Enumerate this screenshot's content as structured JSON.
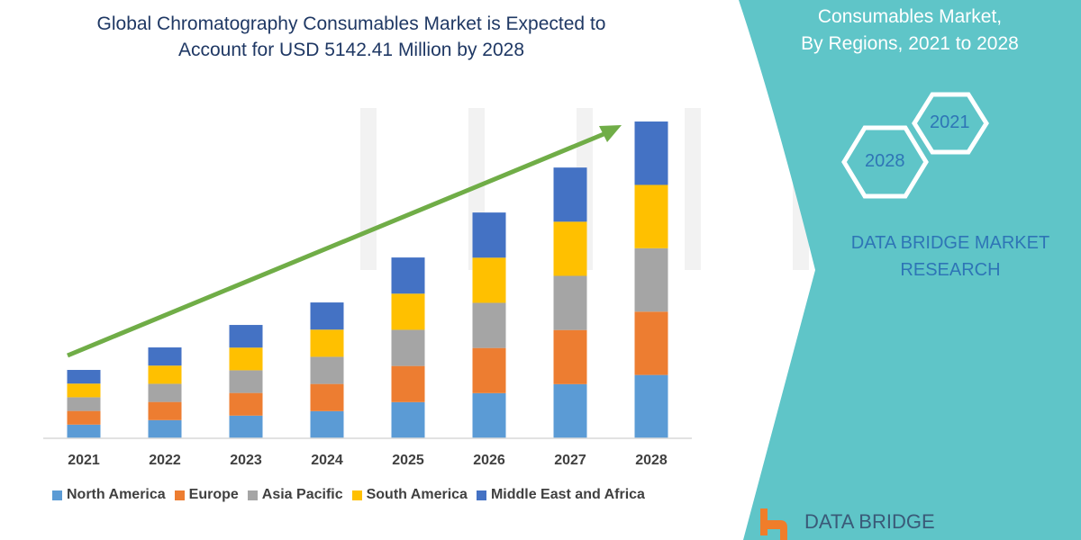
{
  "title_line1": "Global Chromatography Consumables Market is Expected to",
  "title_line2": "Account for USD 5142.41 Million by 2028",
  "panel": {
    "title_line1": "Consumables Market,",
    "title_line2": "By Regions, 2021 to 2028",
    "hex_2021": "2021",
    "hex_2028": "2028",
    "brand_line1": "DATA BRIDGE MARKET",
    "brand_line2": "RESEARCH",
    "logo_text": "DATA BRIDGE",
    "color": "#5fc5c8"
  },
  "watermark": "DATA BRIDGE",
  "chart_data": {
    "type": "bar",
    "stacked": true,
    "title": "Global Chromatography Consumables Market is Expected to Account for USD 5142.41 Million by 2028",
    "categories": [
      "2021",
      "2022",
      "2023",
      "2024",
      "2025",
      "2026",
      "2027",
      "2028"
    ],
    "series": [
      {
        "name": "North America",
        "color": "#5b9bd5",
        "values": [
          222,
          295,
          368,
          441,
          587,
          733,
          879,
          1028
        ]
      },
      {
        "name": "Europe",
        "color": "#ed7d31",
        "values": [
          222,
          295,
          368,
          441,
          587,
          733,
          879,
          1028
        ]
      },
      {
        "name": "Asia Pacific",
        "color": "#a5a5a5",
        "values": [
          222,
          295,
          368,
          441,
          587,
          733,
          879,
          1029
        ]
      },
      {
        "name": "South America",
        "color": "#ffc000",
        "values": [
          222,
          295,
          368,
          441,
          587,
          733,
          879,
          1028
        ]
      },
      {
        "name": "Middle East and Africa",
        "color": "#4472c4",
        "values": [
          222,
          295,
          368,
          441,
          587,
          733,
          879,
          1029
        ]
      }
    ],
    "trend_arrow_color": "#70ad47",
    "legend": "bottom",
    "grid": false,
    "y_axis_shown": false
  }
}
